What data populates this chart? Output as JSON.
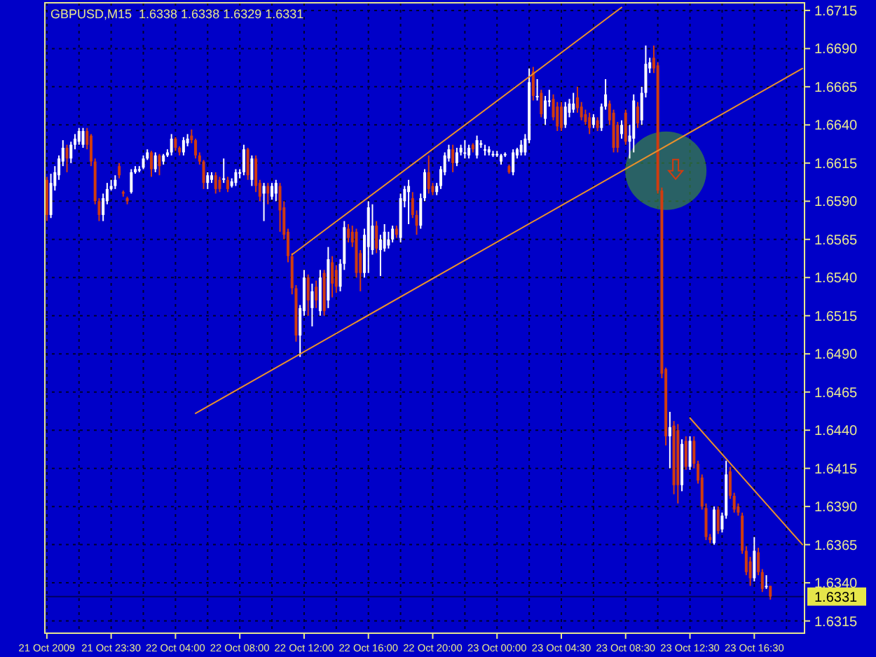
{
  "chart_data": {
    "type": "candlestick",
    "title": "GBPUSD,M15  1.6338 1.6338 1.6329 1.6331",
    "ylim": [
      1.6307,
      1.672
    ],
    "categories": [
      "21 Oct 2009",
      null,
      null,
      null,
      null,
      null,
      null,
      null,
      null,
      null,
      null,
      null,
      null,
      null,
      null,
      null,
      "21 Oct 23:30",
      null,
      null,
      null,
      null,
      null,
      null,
      null,
      null,
      null,
      null,
      null,
      null,
      null,
      null,
      null,
      "22 Oct 04:00",
      null,
      null,
      null,
      null,
      null,
      null,
      null,
      null,
      null,
      null,
      null,
      null,
      null,
      null,
      null,
      "22 Oct 08:00",
      null,
      null,
      null,
      null,
      null,
      null,
      null,
      null,
      null,
      null,
      null,
      null,
      null,
      null,
      null,
      "22 Oct 12:00",
      null,
      null,
      null,
      null,
      null,
      null,
      null,
      null,
      null,
      null,
      null,
      null,
      null,
      null,
      null,
      "22 Oct 16:00",
      null,
      null,
      null,
      null,
      null,
      null,
      null,
      null,
      null,
      null,
      null,
      null,
      null,
      null,
      null,
      "22 Oct 20:00",
      null,
      null,
      null,
      null,
      null,
      null,
      null,
      null,
      null,
      null,
      null,
      null,
      null,
      null,
      null,
      "23 Oct 00:00",
      null,
      null,
      null,
      null,
      null,
      null,
      null,
      null,
      null,
      null,
      null,
      null,
      null,
      null,
      null,
      "23 Oct 04:30",
      null,
      null,
      null,
      null,
      null,
      null,
      null,
      null,
      null,
      null,
      null,
      null,
      null,
      null,
      null,
      "23 Oct 08:30",
      null,
      null,
      null,
      null,
      null,
      null,
      null,
      null,
      null,
      null,
      null,
      null,
      null,
      null,
      null,
      "23 Oct 12:30",
      null,
      null,
      null,
      null,
      null,
      null,
      null,
      null,
      null,
      null,
      null,
      null,
      null,
      null,
      null,
      "23 Oct 16:30",
      null,
      null,
      null,
      null,
      null,
      null,
      null,
      null,
      null,
      null,
      null,
      null
    ],
    "yticks": [
      1.6315,
      {
        "value": 1.634,
        "label": "1.6340"
      },
      1.6365,
      {
        "value": 1.639,
        "label": "1.6390"
      },
      1.6415,
      {
        "value": 1.644,
        "label": "1.6440"
      },
      1.6465,
      {
        "value": 1.649,
        "label": "1.6490"
      },
      1.6515,
      {
        "value": 1.654,
        "label": "1.6540"
      },
      1.6565,
      {
        "value": 1.659,
        "label": "1.6590"
      },
      1.6615,
      {
        "value": 1.664,
        "label": "1.6640"
      },
      1.6665,
      {
        "value": 1.669,
        "label": "1.6690"
      },
      1.6715
    ],
    "grid": true,
    "ref_lines": [
      {
        "axis": "y",
        "value": 1.6331,
        "label": "1.6331",
        "color": "#000060"
      }
    ],
    "series": [
      {
        "ohlc": [
          [
            1.6604,
            1.6606,
            1.6577,
            1.6581
          ],
          [
            1.6581,
            1.6608,
            1.6579,
            1.6602
          ],
          [
            1.66,
            1.6613,
            1.6597,
            1.6609
          ],
          [
            1.6607,
            1.662,
            1.6604,
            1.6618
          ],
          [
            1.6616,
            1.663,
            1.6613,
            1.6625
          ],
          [
            1.6625,
            1.6627,
            1.6609,
            1.6618
          ],
          [
            1.6618,
            1.6629,
            1.6615,
            1.6627
          ],
          [
            1.6627,
            1.6634,
            1.6624,
            1.6631
          ],
          [
            1.6629,
            1.6638,
            1.6627,
            1.6636
          ],
          [
            1.6627,
            1.6638,
            1.6625,
            1.6636
          ],
          [
            1.6636,
            1.6638,
            1.6624,
            1.6627
          ],
          [
            1.6633,
            1.6634,
            1.6613,
            1.6616
          ],
          [
            1.6616,
            1.6618,
            1.6588,
            1.659
          ],
          [
            1.659,
            1.6592,
            1.6577,
            1.6581
          ],
          [
            1.6581,
            1.6595,
            1.6577,
            1.6592
          ],
          [
            1.659,
            1.6602,
            1.6588,
            1.6598
          ],
          [
            1.6598,
            1.6604,
            1.6597,
            1.66
          ],
          [
            1.66,
            1.6607,
            1.6598,
            1.6604
          ],
          [
            1.6613,
            1.6615,
            1.6605,
            1.6607
          ],
          [
            1.6596,
            1.6597,
            1.6593,
            1.6595
          ],
          [
            1.6592,
            1.6593,
            1.6588,
            1.659
          ],
          [
            1.6596,
            1.6611,
            1.6595,
            1.6609
          ],
          [
            1.6609,
            1.6613,
            1.6608,
            1.6611
          ],
          [
            1.661,
            1.6613,
            1.6609,
            1.6611
          ],
          [
            1.6612,
            1.662,
            1.6611,
            1.6618
          ],
          [
            1.6618,
            1.6624,
            1.6617,
            1.6622
          ],
          [
            1.6622,
            1.6623,
            1.6606,
            1.6611
          ],
          [
            1.6611,
            1.6622,
            1.6609,
            1.662
          ],
          [
            1.662,
            1.6621,
            1.6607,
            1.6613
          ],
          [
            1.6616,
            1.6621,
            1.6614,
            1.662
          ],
          [
            1.662,
            1.6624,
            1.6619,
            1.6622
          ],
          [
            1.6622,
            1.6634,
            1.662,
            1.6631
          ],
          [
            1.6631,
            1.6632,
            1.6623,
            1.6625
          ],
          [
            1.6625,
            1.6626,
            1.662,
            1.6622
          ],
          [
            1.6622,
            1.6632,
            1.662,
            1.663
          ],
          [
            1.6628,
            1.6634,
            1.6626,
            1.6631
          ],
          [
            1.6633,
            1.6637,
            1.6628,
            1.663
          ],
          [
            1.663,
            1.6631,
            1.6618,
            1.662
          ],
          [
            1.662,
            1.6622,
            1.6614,
            1.6616
          ],
          [
            1.6616,
            1.6617,
            1.6598,
            1.6602
          ],
          [
            1.6602,
            1.6609,
            1.6598,
            1.6607
          ],
          [
            1.6604,
            1.6609,
            1.6602,
            1.6607
          ],
          [
            1.6607,
            1.6609,
            1.6595,
            1.6598
          ],
          [
            1.6604,
            1.6606,
            1.6596,
            1.6598
          ],
          [
            1.6604,
            1.6618,
            1.6602,
            1.6605
          ],
          [
            1.6604,
            1.6606,
            1.6596,
            1.6598
          ],
          [
            1.66,
            1.6605,
            1.6599,
            1.6603
          ],
          [
            1.6602,
            1.6611,
            1.66,
            1.6609
          ],
          [
            1.6608,
            1.6611,
            1.6605,
            1.6609
          ],
          [
            1.6609,
            1.6627,
            1.6607,
            1.6624
          ],
          [
            1.6624,
            1.6625,
            1.6604,
            1.6607
          ],
          [
            1.6604,
            1.662,
            1.66,
            1.6618
          ],
          [
            1.6618,
            1.662,
            1.6596,
            1.66
          ],
          [
            1.6602,
            1.6604,
            1.659,
            1.6593
          ],
          [
            1.6595,
            1.6602,
            1.6577,
            1.66
          ],
          [
            1.66,
            1.6602,
            1.6588,
            1.6595
          ],
          [
            1.6593,
            1.6602,
            1.6591,
            1.66
          ],
          [
            1.6595,
            1.6604,
            1.659,
            1.6602
          ],
          [
            1.66,
            1.6602,
            1.657,
            1.6584
          ],
          [
            1.6586,
            1.659,
            1.6565,
            1.6568
          ],
          [
            1.657,
            1.6572,
            1.655,
            1.6554
          ],
          [
            1.6554,
            1.6556,
            1.6529,
            1.6533
          ],
          [
            1.6533,
            1.6535,
            1.6498,
            1.6502
          ],
          [
            1.6502,
            1.6522,
            1.6488,
            1.652
          ],
          [
            1.6518,
            1.6545,
            1.6515,
            1.654
          ],
          [
            1.654,
            1.6542,
            1.6515,
            1.6525
          ],
          [
            1.652,
            1.6536,
            1.6508,
            1.6531
          ],
          [
            1.6534,
            1.6538,
            1.652,
            1.6525
          ],
          [
            1.6518,
            1.6545,
            1.6515,
            1.654
          ],
          [
            1.6543,
            1.6545,
            1.6515,
            1.6518
          ],
          [
            1.6525,
            1.656,
            1.652,
            1.6552
          ],
          [
            1.655,
            1.6554,
            1.6527,
            1.6536
          ],
          [
            1.6545,
            1.6548,
            1.653,
            1.6534
          ],
          [
            1.6534,
            1.6552,
            1.6531,
            1.6549
          ],
          [
            1.6549,
            1.6577,
            1.6545,
            1.6573
          ],
          [
            1.6572,
            1.6575,
            1.6563,
            1.6566
          ],
          [
            1.657,
            1.6574,
            1.656,
            1.6563
          ],
          [
            1.657,
            1.6572,
            1.654,
            1.6543
          ],
          [
            1.6556,
            1.6558,
            1.6531,
            1.6543
          ],
          [
            1.6543,
            1.6572,
            1.654,
            1.6568
          ],
          [
            1.656,
            1.659,
            1.6543,
            1.6586
          ],
          [
            1.6558,
            1.6588,
            1.6555,
            1.6574
          ],
          [
            1.6574,
            1.6577,
            1.6556,
            1.6559
          ],
          [
            1.6558,
            1.6568,
            1.6541,
            1.6565
          ],
          [
            1.6559,
            1.6575,
            1.6557,
            1.657
          ],
          [
            1.6561,
            1.657,
            1.6559,
            1.6565
          ],
          [
            1.6565,
            1.6574,
            1.6563,
            1.6572
          ],
          [
            1.6572,
            1.6574,
            1.6566,
            1.6568
          ],
          [
            1.6566,
            1.6595,
            1.6563,
            1.6592
          ],
          [
            1.659,
            1.66,
            1.6586,
            1.6598
          ],
          [
            1.6596,
            1.6604,
            1.6575,
            1.66
          ],
          [
            1.6592,
            1.6596,
            1.6579,
            1.6581
          ],
          [
            1.6581,
            1.6584,
            1.6568,
            1.6574
          ],
          [
            1.6574,
            1.6595,
            1.6572,
            1.6592
          ],
          [
            1.6592,
            1.6611,
            1.659,
            1.6609
          ],
          [
            1.6609,
            1.662,
            1.6595,
            1.6598
          ],
          [
            1.66,
            1.6602,
            1.6594,
            1.6596
          ],
          [
            1.6596,
            1.6602,
            1.6594,
            1.66
          ],
          [
            1.66,
            1.6613,
            1.6598,
            1.6611
          ],
          [
            1.6609,
            1.6622,
            1.6607,
            1.662
          ],
          [
            1.6618,
            1.6627,
            1.6616,
            1.6624
          ],
          [
            1.6624,
            1.6627,
            1.6609,
            1.6615
          ],
          [
            1.6615,
            1.6625,
            1.6613,
            1.6622
          ],
          [
            1.6622,
            1.6627,
            1.662,
            1.6625
          ],
          [
            1.6622,
            1.663,
            1.6618,
            1.6622
          ],
          [
            1.662,
            1.6627,
            1.6618,
            1.6625
          ],
          [
            1.6627,
            1.6628,
            1.6622,
            1.6624
          ],
          [
            1.662,
            1.6633,
            1.6618,
            1.663
          ],
          [
            1.6627,
            1.663,
            1.6625,
            1.6628
          ],
          [
            1.6624,
            1.6627,
            1.662,
            1.6624
          ],
          [
            1.6622,
            1.6626,
            1.662,
            1.6624
          ],
          [
            1.6621,
            1.6623,
            1.6619,
            1.6621
          ],
          [
            1.662,
            1.6623,
            1.6619,
            1.6621
          ],
          [
            1.6616,
            1.6621,
            1.6614,
            1.662
          ],
          [
            1.662,
            1.6622,
            1.6619,
            1.6621
          ],
          [
            1.6613,
            1.6614,
            1.6608,
            1.6609
          ],
          [
            1.6609,
            1.6624,
            1.6607,
            1.6622
          ],
          [
            1.662,
            1.6625,
            1.6618,
            1.6624
          ],
          [
            1.6622,
            1.663,
            1.662,
            1.6627
          ],
          [
            1.6622,
            1.6634,
            1.662,
            1.6631
          ],
          [
            1.663,
            1.6677,
            1.6628,
            1.6668
          ],
          [
            1.6675,
            1.6678,
            1.6656,
            1.6659
          ],
          [
            1.6659,
            1.667,
            1.6656,
            1.6659
          ],
          [
            1.6661,
            1.6663,
            1.6645,
            1.6647
          ],
          [
            1.6644,
            1.6659,
            1.664,
            1.6656
          ],
          [
            1.6656,
            1.6663,
            1.6652,
            1.6656
          ],
          [
            1.6657,
            1.666,
            1.6643,
            1.6645
          ],
          [
            1.6652,
            1.6655,
            1.6636,
            1.6639
          ],
          [
            1.6652,
            1.6655,
            1.6636,
            1.6638
          ],
          [
            1.664,
            1.6655,
            1.6638,
            1.6652
          ],
          [
            1.6648,
            1.6657,
            1.6645,
            1.6654
          ],
          [
            1.665,
            1.6661,
            1.6648,
            1.6654
          ],
          [
            1.6658,
            1.6665,
            1.6648,
            1.6651
          ],
          [
            1.6652,
            1.6655,
            1.6643,
            1.6645
          ],
          [
            1.6647,
            1.665,
            1.664,
            1.6642
          ],
          [
            1.6645,
            1.6648,
            1.6634,
            1.6638
          ],
          [
            1.664,
            1.6647,
            1.6638,
            1.6645
          ],
          [
            1.6643,
            1.6645,
            1.6636,
            1.6638
          ],
          [
            1.6638,
            1.6654,
            1.6636,
            1.6652
          ],
          [
            1.6652,
            1.667,
            1.665,
            1.666
          ],
          [
            1.6654,
            1.6656,
            1.664,
            1.6643
          ],
          [
            1.6648,
            1.665,
            1.6622,
            1.6625
          ],
          [
            1.664,
            1.6642,
            1.6622,
            1.6625
          ],
          [
            1.6634,
            1.6643,
            1.6631,
            1.664
          ],
          [
            1.6648,
            1.665,
            1.6627,
            1.6629
          ],
          [
            1.6629,
            1.664,
            1.6618,
            1.6633
          ],
          [
            1.6631,
            1.666,
            1.6622,
            1.6656
          ],
          [
            1.6652,
            1.6655,
            1.6638,
            1.6641
          ],
          [
            1.6643,
            1.6665,
            1.664,
            1.6661
          ],
          [
            1.6661,
            1.6692,
            1.6658,
            1.668
          ],
          [
            1.6677,
            1.6684,
            1.6674,
            1.6681
          ],
          [
            1.6684,
            1.6692,
            1.6674,
            1.6677
          ],
          [
            1.6679,
            1.6681,
            1.6595,
            1.6597
          ],
          [
            1.6597,
            1.6599,
            1.6474,
            1.6477
          ],
          [
            1.648,
            1.6481,
            1.643,
            1.6436
          ],
          [
            1.6436,
            1.6452,
            1.6415,
            1.6442
          ],
          [
            1.6443,
            1.6446,
            1.6398,
            1.6404
          ],
          [
            1.644,
            1.6444,
            1.6392,
            1.6404
          ],
          [
            1.6404,
            1.6434,
            1.64,
            1.6431
          ],
          [
            1.6433,
            1.6436,
            1.6414,
            1.6416
          ],
          [
            1.6416,
            1.6436,
            1.6414,
            1.6433
          ],
          [
            1.6433,
            1.6436,
            1.6415,
            1.6418
          ],
          [
            1.6418,
            1.642,
            1.6405,
            1.6407
          ],
          [
            1.6409,
            1.6411,
            1.6388,
            1.639
          ],
          [
            1.6389,
            1.6392,
            1.6368,
            1.637
          ],
          [
            1.637,
            1.6372,
            1.6366,
            1.6368
          ],
          [
            1.6366,
            1.639,
            1.6365,
            1.6388
          ],
          [
            1.6388,
            1.639,
            1.6372,
            1.6374
          ],
          [
            1.6375,
            1.6386,
            1.6373,
            1.6384
          ],
          [
            1.6384,
            1.642,
            1.6382,
            1.6411
          ],
          [
            1.6413,
            1.6416,
            1.6395,
            1.6397
          ],
          [
            1.6397,
            1.6399,
            1.6386,
            1.6388
          ],
          [
            1.639,
            1.6392,
            1.6384,
            1.6386
          ],
          [
            1.6384,
            1.6386,
            1.6359,
            1.6361
          ],
          [
            1.6361,
            1.6364,
            1.6345,
            1.6347
          ],
          [
            1.6354,
            1.6357,
            1.6338,
            1.6343
          ],
          [
            1.6343,
            1.637,
            1.6341,
            1.6361
          ],
          [
            1.636,
            1.6363,
            1.6345,
            1.6347
          ],
          [
            1.6347,
            1.6349,
            1.6334,
            1.6336
          ],
          [
            1.6338,
            1.6345,
            1.6336,
            1.6338
          ],
          [
            1.6338,
            1.6338,
            1.6329,
            1.6331
          ],
          null,
          null,
          null,
          null,
          null,
          null,
          null,
          null
        ]
      },
      {
        "type": "line",
        "color": "#e8902c",
        "values": [
          null,
          null,
          null,
          null,
          null,
          null,
          null,
          null,
          null,
          null,
          null,
          null,
          null,
          null,
          null,
          null,
          null,
          null,
          null,
          null,
          null,
          null,
          null,
          null,
          null,
          null,
          null,
          null,
          null,
          null,
          null,
          null,
          null,
          null,
          null,
          null,
          null,
          null,
          null,
          null,
          null,
          null,
          null,
          null,
          null,
          null,
          null,
          null,
          null,
          null,
          null,
          null,
          null,
          null,
          null,
          null,
          null,
          null,
          null,
          null,
          null,
          1.6555,
          null,
          null,
          null,
          null,
          null,
          null,
          null,
          null,
          null,
          null,
          null,
          null,
          null,
          null,
          null,
          null,
          null,
          null,
          null,
          null,
          null,
          null,
          null,
          null,
          null,
          null,
          null,
          null,
          null,
          null,
          null,
          null,
          null,
          null,
          null,
          null,
          null,
          null,
          null,
          null,
          null,
          null,
          null,
          null,
          null,
          null,
          null,
          null,
          null,
          null,
          null,
          null,
          null,
          null,
          null,
          null,
          null,
          null,
          null,
          null,
          null,
          null,
          null,
          null,
          null,
          null,
          null,
          null,
          null,
          null,
          null,
          null,
          null,
          null,
          null,
          null,
          null,
          null,
          null,
          null,
          null,
          1.6717,
          null,
          null,
          null,
          null,
          null,
          null,
          null,
          null,
          null,
          null,
          null,
          null,
          null,
          null,
          null,
          null,
          null,
          null,
          null,
          null,
          null,
          null,
          null,
          null,
          null,
          null,
          null,
          null,
          null,
          null,
          null,
          null,
          null,
          null,
          null,
          null,
          null,
          null,
          null,
          null,
          null,
          null,
          null,
          null,
          null
        ]
      },
      {
        "type": "line",
        "color": "#e8902c",
        "values": [
          null,
          null,
          null,
          null,
          null,
          null,
          null,
          null,
          null,
          null,
          null,
          null,
          null,
          null,
          null,
          null,
          null,
          null,
          null,
          null,
          null,
          null,
          null,
          null,
          null,
          null,
          null,
          null,
          null,
          null,
          null,
          null,
          null,
          null,
          null,
          null,
          null,
          1.6451,
          null,
          null,
          null,
          null,
          null,
          null,
          null,
          null,
          null,
          null,
          null,
          null,
          null,
          null,
          null,
          null,
          null,
          null,
          null,
          null,
          null,
          null,
          null,
          null,
          null,
          null,
          null,
          null,
          null,
          null,
          null,
          null,
          null,
          null,
          null,
          null,
          null,
          null,
          null,
          null,
          null,
          null,
          null,
          null,
          null,
          null,
          null,
          null,
          null,
          null,
          null,
          null,
          null,
          null,
          null,
          null,
          null,
          null,
          null,
          null,
          null,
          null,
          null,
          null,
          null,
          null,
          null,
          null,
          null,
          null,
          null,
          null,
          null,
          null,
          null,
          null,
          null,
          null,
          null,
          null,
          null,
          null,
          null,
          null,
          null,
          null,
          null,
          null,
          null,
          null,
          null,
          null,
          null,
          null,
          null,
          null,
          null,
          null,
          null,
          null,
          null,
          null,
          null,
          null,
          null,
          null,
          null,
          null,
          null,
          null,
          null,
          null,
          null,
          null,
          null,
          null,
          null,
          null,
          null,
          null,
          null,
          null,
          null,
          null,
          null,
          null,
          null,
          null,
          null,
          null,
          null,
          null,
          null,
          null,
          null,
          null,
          null,
          null,
          null,
          null,
          null,
          null,
          null,
          null,
          null,
          null,
          null,
          null,
          null,
          null,
          1.6677
        ]
      },
      {
        "type": "line",
        "color": "#e8902c",
        "values": [
          null,
          null,
          null,
          null,
          null,
          null,
          null,
          null,
          null,
          null,
          null,
          null,
          null,
          null,
          null,
          null,
          null,
          null,
          null,
          null,
          null,
          null,
          null,
          null,
          null,
          null,
          null,
          null,
          null,
          null,
          null,
          null,
          null,
          null,
          null,
          null,
          null,
          null,
          null,
          null,
          null,
          null,
          null,
          null,
          null,
          null,
          null,
          null,
          null,
          null,
          null,
          null,
          null,
          null,
          null,
          null,
          null,
          null,
          null,
          null,
          null,
          null,
          null,
          null,
          null,
          null,
          null,
          null,
          null,
          null,
          null,
          null,
          null,
          null,
          null,
          null,
          null,
          null,
          null,
          null,
          null,
          null,
          null,
          null,
          null,
          null,
          null,
          null,
          null,
          null,
          null,
          null,
          null,
          null,
          null,
          null,
          null,
          null,
          null,
          null,
          null,
          null,
          null,
          null,
          null,
          null,
          null,
          null,
          null,
          null,
          null,
          null,
          null,
          null,
          null,
          null,
          null,
          null,
          null,
          null,
          null,
          null,
          null,
          null,
          null,
          null,
          null,
          null,
          null,
          null,
          null,
          null,
          null,
          null,
          null,
          null,
          null,
          null,
          null,
          null,
          null,
          null,
          null,
          null,
          null,
          null,
          null,
          null,
          null,
          null,
          null,
          null,
          null,
          null,
          null,
          null,
          null,
          null,
          null,
          null,
          1.6448,
          null,
          null,
          null,
          null,
          null,
          null,
          null,
          null,
          null,
          null,
          null,
          null,
          null,
          null,
          null,
          null,
          null,
          null,
          null,
          null,
          null,
          null,
          null,
          null,
          null,
          null,
          null,
          1.6365
        ]
      }
    ]
  }
}
